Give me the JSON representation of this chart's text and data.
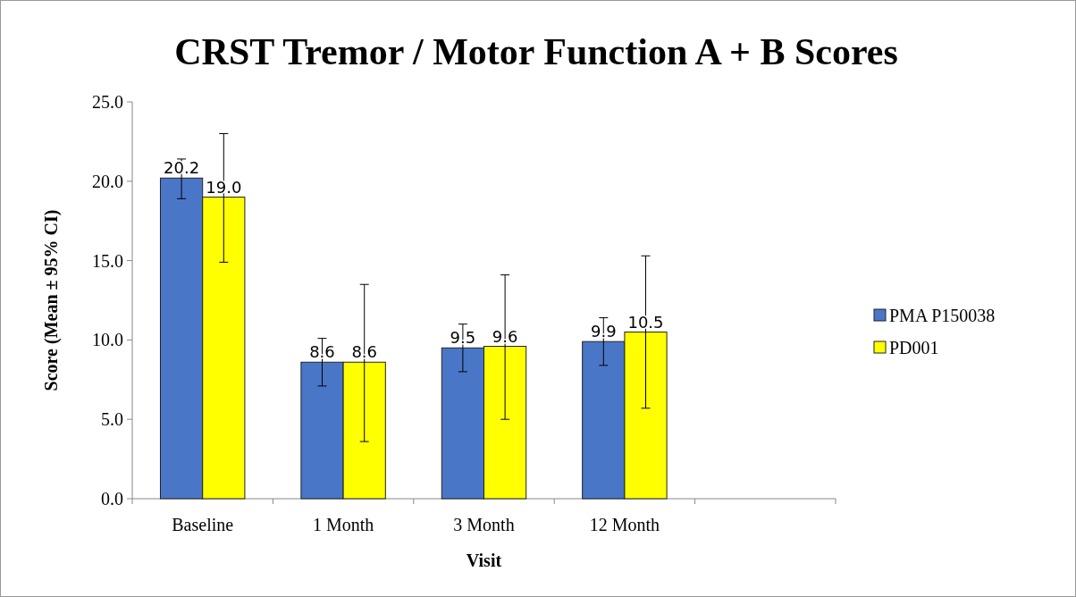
{
  "chart_data": {
    "type": "bar",
    "title": "CRST Tremor / Motor Function A + B Scores",
    "xlabel": "Visit",
    "ylabel": "Score (Mean ± 95% CI)",
    "categories": [
      "Baseline",
      "1 Month",
      "3 Month",
      "12 Month",
      null
    ],
    "series": [
      {
        "name": "PMA P150038",
        "color": "#4a76c8",
        "values": [
          20.2,
          8.6,
          9.5,
          9.9,
          null
        ],
        "value_labels": [
          "20.2",
          "8.6",
          "9.5",
          "9.9",
          null
        ],
        "errors": [
          [
            18.9,
            21.4
          ],
          [
            7.1,
            10.1
          ],
          [
            8.0,
            11.0
          ],
          [
            8.4,
            11.4
          ],
          null
        ]
      },
      {
        "name": "PD001",
        "color": "#ffff00",
        "values": [
          19.0,
          8.6,
          9.6,
          10.5,
          null
        ],
        "value_labels": [
          "19.0",
          "8.6",
          "9.6",
          "10.5",
          null
        ],
        "errors": [
          [
            14.9,
            23.0
          ],
          [
            3.6,
            13.5
          ],
          [
            5.0,
            14.1
          ],
          [
            5.7,
            15.3
          ],
          null
        ]
      }
    ],
    "ylim": [
      0,
      25
    ],
    "yticks": [
      {
        "value": 0,
        "label": "0.0"
      },
      {
        "value": 5,
        "label": "5.0"
      },
      {
        "value": 10,
        "label": "10.0"
      },
      {
        "value": 15,
        "label": "15.0"
      },
      {
        "value": 20,
        "label": "20.0"
      },
      {
        "value": 25,
        "label": "25.0"
      }
    ],
    "legend": "right",
    "grid": false
  }
}
